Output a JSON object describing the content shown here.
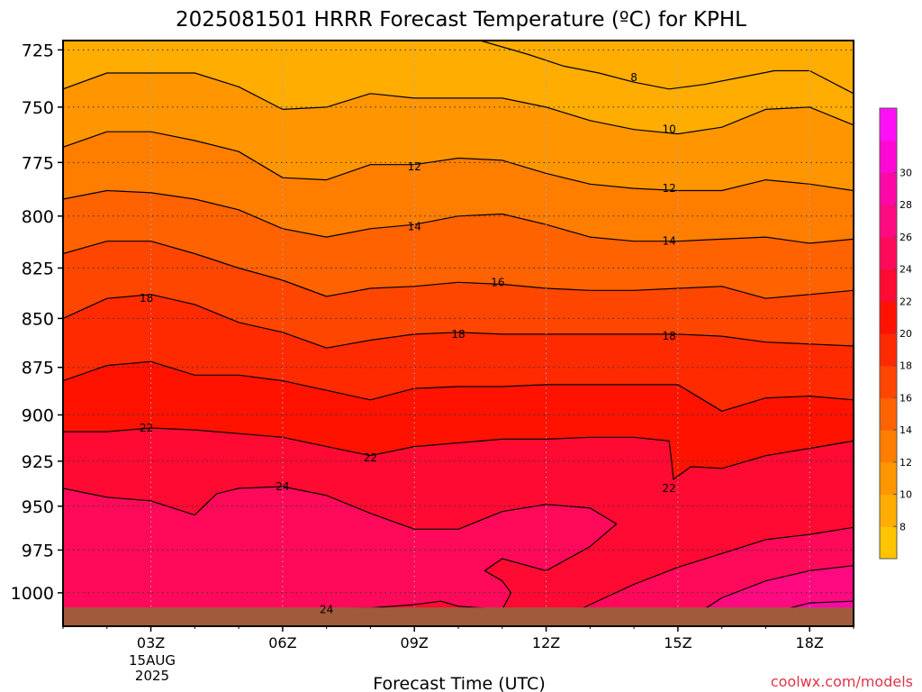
{
  "chart_data": {
    "type": "heatmap",
    "title": "2025081501 HRRR Forecast Temperature (ºC) for KPHL",
    "xlabel": "Forecast Time (UTC)",
    "ylabel": "",
    "credit": "coolwx.com/models",
    "x_ticks": [
      {
        "hour": 3,
        "label": "03Z"
      },
      {
        "hour": 6,
        "label": "06Z"
      },
      {
        "hour": 9,
        "label": "09Z"
      },
      {
        "hour": 12,
        "label": "12Z"
      },
      {
        "hour": 15,
        "label": "15Z"
      },
      {
        "hour": 18,
        "label": "18Z"
      }
    ],
    "date_lines": [
      "15AUG",
      "2025"
    ],
    "xlim_hours": [
      1,
      19
    ],
    "y_ticks": [
      725,
      750,
      775,
      800,
      825,
      850,
      875,
      900,
      925,
      950,
      975,
      1000
    ],
    "ylim_hpa": [
      721,
      1020
    ],
    "y_scale": "log-pressure",
    "grid": true,
    "colorbar": {
      "levels": [
        6,
        8,
        10,
        12,
        14,
        16,
        18,
        20,
        22,
        24,
        26,
        28,
        30,
        32
      ],
      "tick_labels": [
        "8",
        "10",
        "12",
        "14",
        "16",
        "18",
        "20",
        "22",
        "24",
        "26",
        "28",
        "30"
      ],
      "colors": [
        "#ffc400",
        "#ffad00",
        "#ff9600",
        "#ff7e00",
        "#ff6200",
        "#ff4600",
        "#ff2a00",
        "#ff1200",
        "#ff0a32",
        "#ff0a5a",
        "#ff0a80",
        "#ff08a8",
        "#ff08d6",
        "#ff10f6"
      ]
    },
    "surface_color": "#a05a3c",
    "contour_levels": [
      8,
      10,
      12,
      14,
      16,
      18,
      20,
      22,
      24,
      26
    ],
    "isotherms": [
      {
        "value": 8,
        "points": [
          [
            10.5,
            721
          ],
          [
            11.6,
            727
          ],
          [
            12.4,
            732
          ],
          [
            13.2,
            735
          ],
          [
            14.0,
            739
          ],
          [
            14.8,
            742
          ],
          [
            15.6,
            740
          ],
          [
            16.4,
            737
          ],
          [
            17.2,
            734
          ],
          [
            18.0,
            734
          ],
          [
            19.0,
            744
          ]
        ]
      },
      {
        "value": 10,
        "points": [
          [
            1.0,
            742
          ],
          [
            2.0,
            735
          ],
          [
            3.0,
            735
          ],
          [
            4.0,
            735
          ],
          [
            5.0,
            741
          ],
          [
            6.0,
            751
          ],
          [
            7.0,
            750
          ],
          [
            8.0,
            744
          ],
          [
            9.0,
            746
          ],
          [
            10.0,
            746
          ],
          [
            11.0,
            746
          ],
          [
            12.0,
            750
          ],
          [
            13.0,
            756
          ],
          [
            14.0,
            760
          ],
          [
            15.0,
            762
          ],
          [
            16.0,
            759
          ],
          [
            17.0,
            751
          ],
          [
            18.0,
            750
          ],
          [
            19.0,
            758
          ]
        ]
      },
      {
        "value": 12,
        "points": [
          [
            1.0,
            768
          ],
          [
            2.0,
            761
          ],
          [
            3.0,
            761
          ],
          [
            4.0,
            765
          ],
          [
            5.0,
            770
          ],
          [
            6.0,
            782
          ],
          [
            7.0,
            783
          ],
          [
            8.0,
            776
          ],
          [
            9.0,
            776
          ],
          [
            10.0,
            773
          ],
          [
            11.0,
            774
          ],
          [
            12.0,
            780
          ],
          [
            13.0,
            785
          ],
          [
            14.0,
            787
          ],
          [
            15.0,
            788
          ],
          [
            16.0,
            788
          ],
          [
            17.0,
            783
          ],
          [
            18.0,
            785
          ],
          [
            19.0,
            788
          ]
        ]
      },
      {
        "value": 14,
        "points": [
          [
            1.0,
            792
          ],
          [
            2.0,
            788
          ],
          [
            3.0,
            789
          ],
          [
            4.0,
            792
          ],
          [
            5.0,
            797
          ],
          [
            6.0,
            806
          ],
          [
            7.0,
            810
          ],
          [
            8.0,
            806
          ],
          [
            9.0,
            804
          ],
          [
            10.0,
            800
          ],
          [
            11.0,
            799
          ],
          [
            12.0,
            804
          ],
          [
            13.0,
            810
          ],
          [
            14.0,
            812
          ],
          [
            15.0,
            812
          ],
          [
            16.0,
            811
          ],
          [
            17.0,
            810
          ],
          [
            18.0,
            813
          ],
          [
            19.0,
            811
          ]
        ]
      },
      {
        "value": 16,
        "points": [
          [
            1.0,
            818
          ],
          [
            2.0,
            812
          ],
          [
            3.0,
            812
          ],
          [
            4.0,
            818
          ],
          [
            5.0,
            825
          ],
          [
            6.0,
            831
          ],
          [
            7.0,
            839
          ],
          [
            8.0,
            835
          ],
          [
            9.0,
            834
          ],
          [
            10.0,
            832
          ],
          [
            11.0,
            833
          ],
          [
            12.0,
            835
          ],
          [
            13.0,
            836
          ],
          [
            14.0,
            836
          ],
          [
            15.0,
            835
          ],
          [
            16.0,
            834
          ],
          [
            17.0,
            840
          ],
          [
            18.0,
            838
          ],
          [
            19.0,
            836
          ]
        ]
      },
      {
        "value": 18,
        "points": [
          [
            1.0,
            850
          ],
          [
            2.0,
            840
          ],
          [
            3.0,
            838
          ],
          [
            4.0,
            843
          ],
          [
            5.0,
            852
          ],
          [
            6.0,
            857
          ],
          [
            7.0,
            865
          ],
          [
            8.0,
            861
          ],
          [
            9.0,
            858
          ],
          [
            10.0,
            857
          ],
          [
            11.0,
            858
          ],
          [
            12.0,
            858
          ],
          [
            13.0,
            858
          ],
          [
            14.0,
            858
          ],
          [
            15.0,
            858
          ],
          [
            16.0,
            859
          ],
          [
            17.0,
            862
          ],
          [
            18.0,
            863
          ],
          [
            19.0,
            864
          ]
        ]
      },
      {
        "value": 20,
        "points": [
          [
            1.0,
            882
          ],
          [
            2.0,
            874
          ],
          [
            3.0,
            872
          ],
          [
            4.0,
            879
          ],
          [
            5.0,
            879
          ],
          [
            6.0,
            882
          ],
          [
            7.0,
            887
          ],
          [
            8.0,
            892
          ],
          [
            9.0,
            886
          ],
          [
            10.0,
            885
          ],
          [
            11.0,
            885
          ],
          [
            12.0,
            884
          ],
          [
            13.0,
            884
          ],
          [
            14.0,
            884
          ],
          [
            15.0,
            884
          ],
          [
            16.0,
            898
          ],
          [
            17.0,
            891
          ],
          [
            18.0,
            890
          ],
          [
            19.0,
            892
          ]
        ]
      },
      {
        "value": 22,
        "points": [
          [
            1.0,
            909
          ],
          [
            2.0,
            909
          ],
          [
            3.0,
            907
          ],
          [
            4.0,
            908
          ],
          [
            5.0,
            910
          ],
          [
            6.0,
            912
          ],
          [
            7.0,
            917
          ],
          [
            8.0,
            922
          ],
          [
            9.0,
            917
          ],
          [
            10.0,
            915
          ],
          [
            11.0,
            913
          ],
          [
            12.0,
            913
          ],
          [
            13.0,
            912
          ],
          [
            14.0,
            912
          ],
          [
            14.8,
            914
          ],
          [
            14.85,
            924
          ],
          [
            14.9,
            935
          ],
          [
            15.3,
            928
          ],
          [
            16.0,
            929
          ],
          [
            17.0,
            922
          ],
          [
            18.0,
            918
          ],
          [
            19.0,
            914
          ]
        ]
      },
      {
        "value": 24,
        "points": [
          [
            1.0,
            940
          ],
          [
            2.0,
            945
          ],
          [
            3.0,
            947
          ],
          [
            4.0,
            955
          ],
          [
            4.5,
            943
          ],
          [
            5.0,
            940
          ],
          [
            6.0,
            939
          ],
          [
            7.0,
            944
          ],
          [
            8.0,
            954
          ],
          [
            9.0,
            963
          ],
          [
            10.0,
            963
          ],
          [
            11.0,
            953
          ],
          [
            12.0,
            949
          ],
          [
            13.0,
            951
          ],
          [
            13.6,
            960
          ],
          [
            13.0,
            973
          ],
          [
            12.0,
            987
          ],
          [
            11.0,
            980
          ],
          [
            10.6,
            987
          ],
          [
            11.0,
            993
          ],
          [
            11.2,
            1000
          ],
          [
            11.0,
            1010
          ],
          [
            10.0,
            1008
          ],
          [
            9.6,
            1005
          ],
          [
            9.0,
            1007
          ],
          [
            8.0,
            1009
          ],
          [
            6.0,
            1010
          ],
          [
            4.0,
            1012
          ]
        ]
      },
      {
        "value": 24,
        "points": [
          [
            12.0,
            1020
          ],
          [
            13.0,
            1007
          ],
          [
            14.0,
            995
          ],
          [
            15.0,
            985
          ],
          [
            16.0,
            977
          ],
          [
            17.0,
            969
          ],
          [
            18.0,
            966
          ],
          [
            19.0,
            962
          ]
        ]
      },
      {
        "value": 26,
        "points": [
          [
            15.0,
            1020
          ],
          [
            16.0,
            1003
          ],
          [
            17.0,
            993
          ],
          [
            18.0,
            987
          ],
          [
            19.0,
            984
          ]
        ]
      },
      {
        "value": 28,
        "points": [
          [
            16.5,
            1020
          ],
          [
            17.0,
            1013
          ],
          [
            18.0,
            1006
          ],
          [
            19.0,
            1005
          ]
        ]
      }
    ],
    "contour_labels": [
      {
        "text": "8",
        "hour": 14.0,
        "hpa": 737
      },
      {
        "text": "10",
        "hour": 14.8,
        "hpa": 760
      },
      {
        "text": "12",
        "hour": 9.0,
        "hpa": 777
      },
      {
        "text": "12",
        "hour": 14.8,
        "hpa": 787
      },
      {
        "text": "14",
        "hour": 9.0,
        "hpa": 805
      },
      {
        "text": "14",
        "hour": 14.8,
        "hpa": 812
      },
      {
        "text": "16",
        "hour": 10.9,
        "hpa": 832
      },
      {
        "text": "18",
        "hour": 2.9,
        "hpa": 840
      },
      {
        "text": "18",
        "hour": 10.0,
        "hpa": 858
      },
      {
        "text": "18",
        "hour": 14.8,
        "hpa": 859
      },
      {
        "text": "22",
        "hour": 2.9,
        "hpa": 907
      },
      {
        "text": "22",
        "hour": 8.0,
        "hpa": 923
      },
      {
        "text": "22",
        "hour": 14.8,
        "hpa": 940
      },
      {
        "text": "24",
        "hour": 6.0,
        "hpa": 939
      },
      {
        "text": "24",
        "hour": 7.0,
        "hpa": 1010
      }
    ]
  }
}
